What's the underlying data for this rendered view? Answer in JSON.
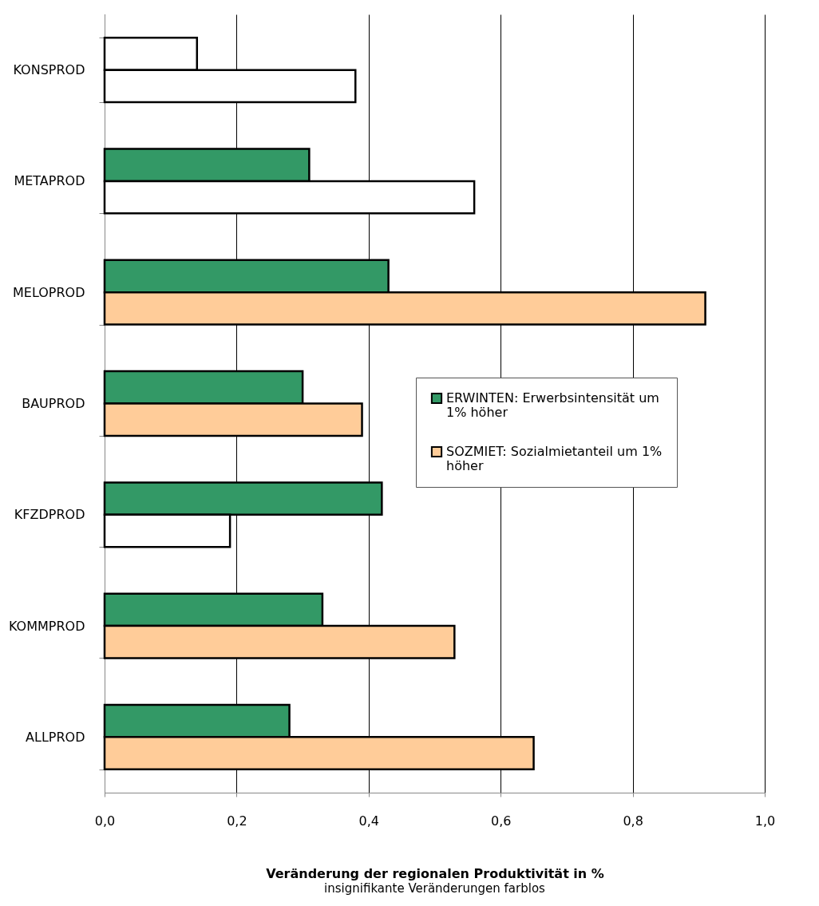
{
  "chart_data": {
    "type": "bar",
    "orientation": "horizontal",
    "xlabel": "Veränderung der regionalen Produktivität in %",
    "annotations": [
      "insignifikante Veränderungen farblos"
    ],
    "categories": [
      "KONSPROD",
      "METAPROD",
      "MELOPROD",
      "BAUPROD",
      "KFZDPROD",
      "KOMMPROD",
      "ALLPROD"
    ],
    "series": [
      {
        "name": "ERWINTEN: Erwerbsintensität um 1% höher",
        "color": "#339966",
        "colors": [
          "#ffffff",
          "#339966",
          "#339966",
          "#339966",
          "#339966",
          "#339966",
          "#339966"
        ],
        "values": [
          0.14,
          0.31,
          0.43,
          0.3,
          0.42,
          0.33,
          0.28
        ]
      },
      {
        "name": "SOZMIET: Sozialmietanteil um 1% höher",
        "color": "#ffcc99",
        "colors": [
          "#ffffff",
          "#ffffff",
          "#ffcc99",
          "#ffcc99",
          "#ffffff",
          "#ffcc99",
          "#ffcc99"
        ],
        "values": [
          0.38,
          0.56,
          0.91,
          0.39,
          0.19,
          0.53,
          0.65
        ]
      }
    ],
    "xlim": [
      0,
      1
    ],
    "xticks": [
      {
        "value": 0,
        "label": "0,0"
      },
      {
        "value": 0.2,
        "label": "0,2"
      },
      {
        "value": 0.4,
        "label": "0,4"
      },
      {
        "value": 0.6,
        "label": "0,6"
      },
      {
        "value": 0.8,
        "label": "0,8"
      },
      {
        "value": 1,
        "label": "1,0"
      }
    ],
    "grid": "x",
    "legend": "right"
  }
}
